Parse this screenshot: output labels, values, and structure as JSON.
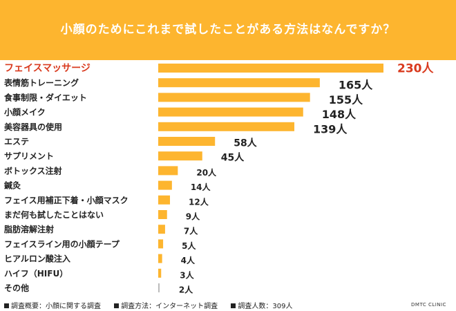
{
  "header": {
    "title": "小顔のためにこれまで試したことがある方法はなんですか？"
  },
  "chart_data": {
    "type": "bar",
    "orientation": "horizontal",
    "categories": [
      "フェイスマッサージ",
      "表情筋トレーニング",
      "食事制限・ダイエット",
      "小顔メイク",
      "美容器具の使用",
      "エステ",
      "サプリメント",
      "ボトックス注射",
      "鍼灸",
      "フェイス用補正下着・小顔マスク",
      "まだ何も試したことはない",
      "脂肪溶解注射",
      "フェイスライン用の小顔テープ",
      "ヒアルロン酸注入",
      "ハイフ（HIFU）",
      "その他"
    ],
    "values": [
      230,
      165,
      155,
      148,
      139,
      58,
      45,
      20,
      14,
      12,
      9,
      7,
      5,
      4,
      3,
      2
    ],
    "value_labels": [
      "230人",
      "165人",
      "155人",
      "148人",
      "139人",
      "58人",
      "45人",
      "20人",
      "14人",
      "12人",
      "9人",
      "7人",
      "5人",
      "4人",
      "3人",
      "2人"
    ],
    "colors": {
      "bar": "#fdb52f",
      "highlight_text": "#d93a1e",
      "other_bar": "#bbbbbb",
      "text": "#222222"
    }
  },
  "footer": {
    "items": [
      "調査概要：小顔に関する調査",
      "調査方法：インターネット調査",
      "調査人数：309人"
    ],
    "brand": "DMTC CLINIC"
  }
}
